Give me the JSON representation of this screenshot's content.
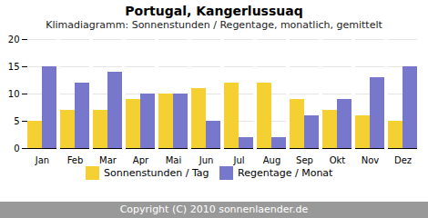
{
  "chart_data": {
    "type": "bar",
    "title": "Portugal, Kangerlussuaq",
    "subtitle": "Klimadiagramm: Sonnenstunden / Regentage, monatlich, gemittelt",
    "categories": [
      "Jan",
      "Feb",
      "Mar",
      "Apr",
      "Mai",
      "Jun",
      "Jul",
      "Aug",
      "Sep",
      "Okt",
      "Nov",
      "Dez"
    ],
    "series": [
      {
        "name": "Sonnenstunden / Tag",
        "color": "#F5D033",
        "values": [
          5,
          7,
          7,
          9,
          10,
          11,
          12,
          12,
          9,
          7,
          6,
          5
        ]
      },
      {
        "name": "Regentage / Monat",
        "color": "#7777CC",
        "values": [
          15,
          12,
          14,
          10,
          10,
          5,
          2,
          2,
          6,
          9,
          13,
          15
        ]
      }
    ],
    "ylim": [
      0,
      20
    ],
    "yticks": [
      0,
      5,
      10,
      15,
      20
    ],
    "grid": true,
    "legend": "bottom",
    "annotations": [
      "Copyright (C) 2010 sonnenlaender.de"
    ]
  }
}
